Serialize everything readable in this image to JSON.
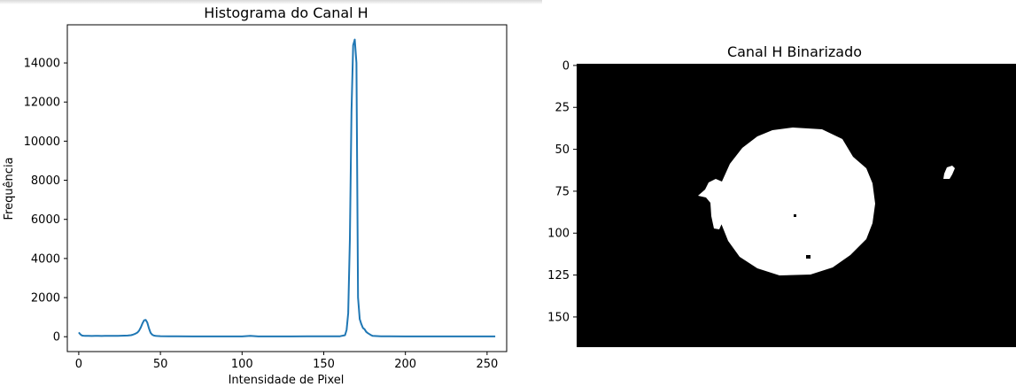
{
  "chart_data": [
    {
      "type": "line",
      "title": "Histograma do Canal H",
      "xlabel": "Intensidade de Pixel",
      "ylabel": "Frequência",
      "xlim": [
        -7,
        262
      ],
      "ylim": [
        -760,
        15950
      ],
      "xticks": [
        0,
        50,
        100,
        150,
        200,
        250
      ],
      "yticks": [
        0,
        2000,
        4000,
        6000,
        8000,
        10000,
        12000,
        14000
      ],
      "grid": false,
      "series_color": "#1f77b4",
      "x": [
        0,
        1,
        2,
        3,
        4,
        5,
        6,
        8,
        10,
        12,
        14,
        16,
        18,
        20,
        22,
        24,
        26,
        28,
        30,
        32,
        33,
        34,
        35,
        36,
        37,
        38,
        39,
        40,
        41,
        42,
        43,
        44,
        45,
        46,
        47,
        48,
        50,
        55,
        60,
        70,
        80,
        90,
        100,
        105,
        110,
        120,
        130,
        140,
        150,
        160,
        163,
        164,
        165,
        166,
        167,
        168,
        169,
        170,
        171,
        172,
        173,
        174,
        175,
        176,
        177,
        178,
        179,
        180,
        185,
        190,
        200,
        210,
        220,
        230,
        240,
        250,
        255
      ],
      "y": [
        220,
        120,
        60,
        50,
        45,
        40,
        45,
        35,
        40,
        45,
        35,
        40,
        45,
        40,
        40,
        45,
        50,
        55,
        60,
        80,
        100,
        130,
        170,
        220,
        320,
        480,
        680,
        840,
        860,
        720,
        420,
        200,
        100,
        60,
        45,
        35,
        30,
        25,
        20,
        15,
        15,
        15,
        15,
        40,
        15,
        15,
        15,
        20,
        20,
        25,
        80,
        350,
        1200,
        5000,
        11500,
        14900,
        15200,
        14000,
        2000,
        900,
        650,
        450,
        380,
        250,
        180,
        130,
        80,
        40,
        25,
        20,
        15,
        15,
        15,
        15,
        15,
        15,
        15
      ]
    },
    {
      "type": "heatmap",
      "title": "Canal H Binarizado",
      "yticks": [
        0,
        25,
        50,
        75,
        100,
        125,
        150
      ],
      "ylim": [
        0,
        169
      ],
      "xlim": [
        0,
        260
      ],
      "cmap": "gray",
      "colors": {
        "background": "#000000",
        "foreground": "#ffffff"
      }
    }
  ]
}
